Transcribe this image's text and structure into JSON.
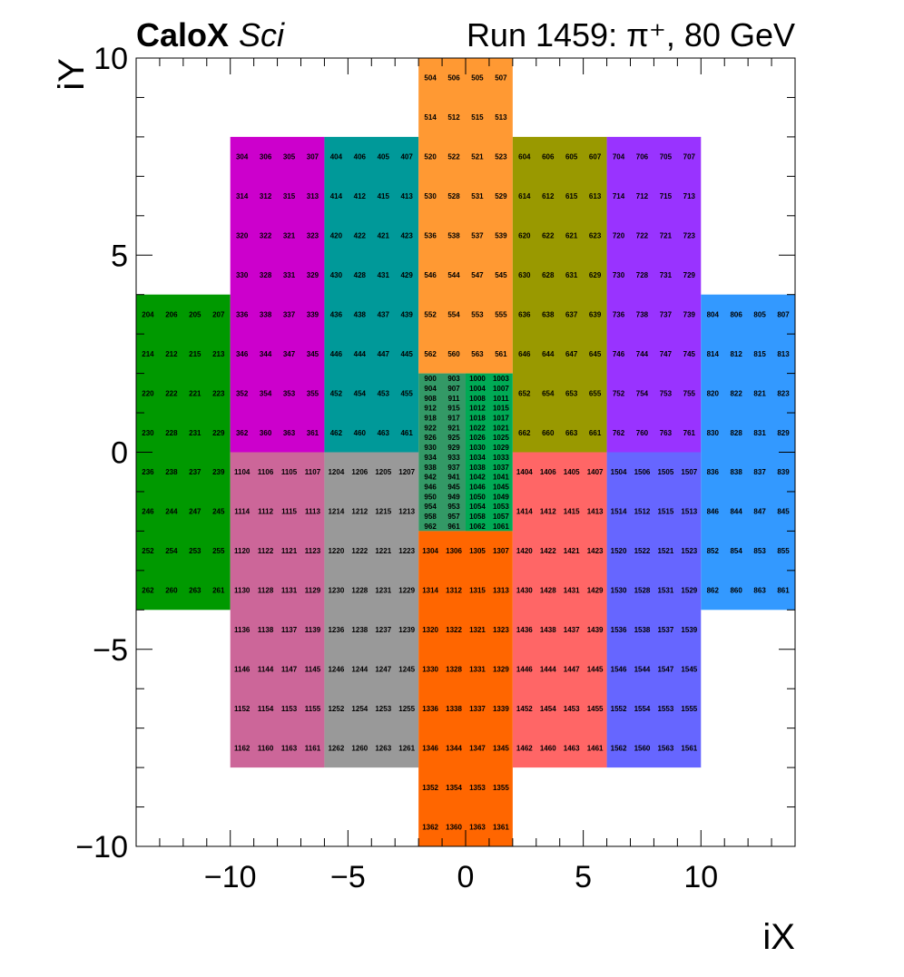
{
  "header": {
    "experiment_bold": "CaloX",
    "experiment_italic": "Sci",
    "run_label": "Run 1459: π⁺, 80 GeV"
  },
  "chart_data": {
    "type": "heatmap",
    "xlabel": "iX",
    "ylabel": "iY",
    "xlim": [
      -14,
      14
    ],
    "ylim": [
      -10,
      10
    ],
    "x_major_ticks": [
      -10,
      -5,
      0,
      5,
      10
    ],
    "y_major_ticks": [
      -10,
      -5,
      0,
      5,
      10
    ],
    "x_tick_labels": [
      "−10",
      "−5",
      "0",
      "5",
      "10"
    ],
    "y_tick_labels": [
      "−10",
      "−5",
      "0",
      "5",
      "10"
    ],
    "grid": false,
    "modules": [
      {
        "name": "module-2",
        "color": "#009900",
        "x0": -14,
        "x1": -10,
        "y0": -4,
        "y1": 4,
        "channels": [
          [
            204,
            206,
            205,
            207
          ],
          [
            214,
            212,
            215,
            213
          ],
          [
            220,
            222,
            221,
            223
          ],
          [
            230,
            228,
            231,
            229
          ],
          [
            236,
            238,
            237,
            239
          ],
          [
            246,
            244,
            247,
            245
          ],
          [
            252,
            254,
            253,
            255
          ],
          [
            262,
            260,
            263,
            261
          ]
        ]
      },
      {
        "name": "module-3",
        "color": "#cc00cc",
        "x0": -10,
        "x1": -6,
        "y0": 0,
        "y1": 8,
        "channels": [
          [
            304,
            306,
            305,
            307
          ],
          [
            314,
            312,
            315,
            313
          ],
          [
            320,
            322,
            321,
            323
          ],
          [
            330,
            328,
            331,
            329
          ],
          [
            336,
            338,
            337,
            339
          ],
          [
            346,
            344,
            347,
            345
          ],
          [
            352,
            354,
            353,
            355
          ],
          [
            362,
            360,
            363,
            361
          ]
        ]
      },
      {
        "name": "module-4",
        "color": "#009999",
        "x0": -6,
        "x1": -2,
        "y0": 0,
        "y1": 8,
        "channels": [
          [
            404,
            406,
            405,
            407
          ],
          [
            414,
            412,
            415,
            413
          ],
          [
            420,
            422,
            421,
            423
          ],
          [
            430,
            428,
            431,
            429
          ],
          [
            436,
            438,
            437,
            439
          ],
          [
            446,
            444,
            447,
            445
          ],
          [
            452,
            454,
            453,
            455
          ],
          [
            462,
            460,
            463,
            461
          ]
        ]
      },
      {
        "name": "module-5",
        "color": "#ff9933",
        "x0": -2,
        "x1": 2,
        "y0": 2,
        "y1": 10,
        "channels": [
          [
            504,
            506,
            505,
            507
          ],
          [
            514,
            512,
            515,
            513
          ],
          [
            520,
            522,
            521,
            523
          ],
          [
            530,
            528,
            531,
            529
          ],
          [
            536,
            538,
            537,
            539
          ],
          [
            546,
            544,
            547,
            545
          ],
          [
            552,
            554,
            553,
            555
          ],
          [
            562,
            560,
            563,
            561
          ]
        ]
      },
      {
        "name": "module-6",
        "color": "#999900",
        "x0": 2,
        "x1": 6,
        "y0": 0,
        "y1": 8,
        "channels": [
          [
            604,
            606,
            605,
            607
          ],
          [
            614,
            612,
            615,
            613
          ],
          [
            620,
            622,
            621,
            623
          ],
          [
            630,
            628,
            631,
            629
          ],
          [
            636,
            638,
            637,
            639
          ],
          [
            646,
            644,
            647,
            645
          ],
          [
            652,
            654,
            653,
            655
          ],
          [
            662,
            660,
            663,
            661
          ]
        ]
      },
      {
        "name": "module-7",
        "color": "#9933ff",
        "x0": 6,
        "x1": 10,
        "y0": 0,
        "y1": 8,
        "channels": [
          [
            704,
            706,
            705,
            707
          ],
          [
            714,
            712,
            715,
            713
          ],
          [
            720,
            722,
            721,
            723
          ],
          [
            730,
            728,
            731,
            729
          ],
          [
            736,
            738,
            737,
            739
          ],
          [
            746,
            744,
            747,
            745
          ],
          [
            752,
            754,
            753,
            755
          ],
          [
            762,
            760,
            763,
            761
          ]
        ]
      },
      {
        "name": "module-8",
        "color": "#3399ff",
        "x0": 10,
        "x1": 14,
        "y0": -4,
        "y1": 4,
        "channels": [
          [
            804,
            806,
            805,
            807
          ],
          [
            814,
            812,
            815,
            813
          ],
          [
            820,
            822,
            821,
            823
          ],
          [
            830,
            828,
            831,
            829
          ],
          [
            836,
            838,
            837,
            839
          ],
          [
            846,
            844,
            847,
            845
          ],
          [
            852,
            854,
            853,
            855
          ],
          [
            862,
            860,
            863,
            861
          ]
        ]
      },
      {
        "name": "module-9",
        "color": "#339966",
        "x0": -2,
        "x1": 0,
        "y0": -2,
        "y1": 2,
        "channels": [
          [
            900,
            903
          ],
          [
            904,
            907
          ],
          [
            908,
            911
          ],
          [
            912,
            915
          ],
          [
            918,
            917
          ],
          [
            922,
            921
          ],
          [
            926,
            925
          ],
          [
            930,
            929
          ],
          [
            934,
            933
          ],
          [
            938,
            937
          ],
          [
            942,
            941
          ],
          [
            946,
            945
          ],
          [
            950,
            949
          ],
          [
            954,
            953
          ],
          [
            958,
            957
          ],
          [
            962,
            961
          ]
        ]
      },
      {
        "name": "module-10",
        "color": "#00aa55",
        "x0": 0,
        "x1": 2,
        "y0": -2,
        "y1": 2,
        "channels": [
          [
            1000,
            1003
          ],
          [
            1004,
            1007
          ],
          [
            1008,
            1011
          ],
          [
            1012,
            1015
          ],
          [
            1018,
            1017
          ],
          [
            1022,
            1021
          ],
          [
            1026,
            1025
          ],
          [
            1030,
            1029
          ],
          [
            1034,
            1033
          ],
          [
            1038,
            1037
          ],
          [
            1042,
            1041
          ],
          [
            1046,
            1045
          ],
          [
            1050,
            1049
          ],
          [
            1054,
            1053
          ],
          [
            1058,
            1057
          ],
          [
            1062,
            1061
          ]
        ]
      },
      {
        "name": "module-11",
        "color": "#cc6699",
        "x0": -10,
        "x1": -6,
        "y0": -8,
        "y1": 0,
        "channels": [
          [
            1104,
            1106,
            1105,
            1107
          ],
          [
            1114,
            1112,
            1115,
            1113
          ],
          [
            1120,
            1122,
            1121,
            1123
          ],
          [
            1130,
            1128,
            1131,
            1129
          ],
          [
            1136,
            1138,
            1137,
            1139
          ],
          [
            1146,
            1144,
            1147,
            1145
          ],
          [
            1152,
            1154,
            1153,
            1155
          ],
          [
            1162,
            1160,
            1163,
            1161
          ]
        ]
      },
      {
        "name": "module-12",
        "color": "#999999",
        "x0": -6,
        "x1": -2,
        "y0": -8,
        "y1": 0,
        "channels": [
          [
            1204,
            1206,
            1205,
            1207
          ],
          [
            1214,
            1212,
            1215,
            1213
          ],
          [
            1220,
            1222,
            1221,
            1223
          ],
          [
            1230,
            1228,
            1231,
            1229
          ],
          [
            1236,
            1238,
            1237,
            1239
          ],
          [
            1246,
            1244,
            1247,
            1245
          ],
          [
            1252,
            1254,
            1253,
            1255
          ],
          [
            1262,
            1260,
            1263,
            1261
          ]
        ]
      },
      {
        "name": "module-13",
        "color": "#ff6600",
        "x0": -2,
        "x1": 2,
        "y0": -10,
        "y1": -2,
        "channels": [
          [
            1304,
            1306,
            1305,
            1307
          ],
          [
            1314,
            1312,
            1315,
            1313
          ],
          [
            1320,
            1322,
            1321,
            1323
          ],
          [
            1330,
            1328,
            1331,
            1329
          ],
          [
            1336,
            1338,
            1337,
            1339
          ],
          [
            1346,
            1344,
            1347,
            1345
          ],
          [
            1352,
            1354,
            1353,
            1355
          ],
          [
            1362,
            1360,
            1363,
            1361
          ]
        ]
      },
      {
        "name": "module-14",
        "color": "#ff6666",
        "x0": 2,
        "x1": 6,
        "y0": -8,
        "y1": 0,
        "channels": [
          [
            1404,
            1406,
            1405,
            1407
          ],
          [
            1414,
            1412,
            1415,
            1413
          ],
          [
            1420,
            1422,
            1421,
            1423
          ],
          [
            1430,
            1428,
            1431,
            1429
          ],
          [
            1436,
            1438,
            1437,
            1439
          ],
          [
            1446,
            1444,
            1447,
            1445
          ],
          [
            1452,
            1454,
            1453,
            1455
          ],
          [
            1462,
            1460,
            1463,
            1461
          ]
        ]
      },
      {
        "name": "module-15",
        "color": "#6666ff",
        "x0": 6,
        "x1": 10,
        "y0": -8,
        "y1": 0,
        "channels": [
          [
            1504,
            1506,
            1505,
            1507
          ],
          [
            1514,
            1512,
            1515,
            1513
          ],
          [
            1520,
            1522,
            1521,
            1523
          ],
          [
            1530,
            1528,
            1531,
            1529
          ],
          [
            1536,
            1538,
            1537,
            1539
          ],
          [
            1546,
            1544,
            1547,
            1545
          ],
          [
            1552,
            1554,
            1553,
            1555
          ],
          [
            1562,
            1560,
            1563,
            1561
          ]
        ]
      }
    ]
  }
}
